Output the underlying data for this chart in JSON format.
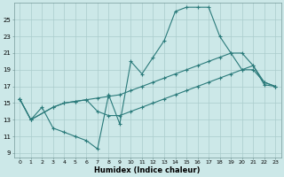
{
  "xlabel": "Humidex (Indice chaleur)",
  "ylabel": "",
  "bg_color": "#cce8e8",
  "grid_color": "#aacccc",
  "line_color": "#2a7a7a",
  "xlim": [
    -0.5,
    23.5
  ],
  "ylim": [
    8.5,
    27
  ],
  "xticks": [
    0,
    1,
    2,
    3,
    4,
    5,
    6,
    7,
    8,
    9,
    10,
    11,
    12,
    13,
    14,
    15,
    16,
    17,
    18,
    19,
    20,
    21,
    22,
    23
  ],
  "yticks": [
    9,
    11,
    13,
    15,
    17,
    19,
    21,
    23,
    25
  ],
  "line1_x": [
    0,
    1,
    2,
    3,
    4,
    5,
    6,
    7,
    8,
    9,
    10,
    11,
    12,
    13,
    14,
    15,
    16,
    17,
    18,
    19,
    20,
    21,
    22,
    23
  ],
  "line1_y": [
    15.5,
    13.0,
    14.5,
    12.0,
    11.5,
    11.0,
    10.5,
    9.5,
    16.0,
    12.5,
    20.0,
    18.5,
    20.5,
    22.5,
    26.0,
    26.5,
    26.5,
    26.5,
    23.0,
    21.0,
    19.0,
    19.0,
    17.5,
    17.0
  ],
  "line2_x": [
    0,
    1,
    3,
    4,
    5,
    6,
    7,
    8,
    9,
    10,
    11,
    12,
    13,
    14,
    15,
    16,
    17,
    18,
    19,
    20,
    21,
    22,
    23
  ],
  "line2_y": [
    15.5,
    13.0,
    14.5,
    15.0,
    15.2,
    15.4,
    15.6,
    15.8,
    16.0,
    16.5,
    17.0,
    17.5,
    18.0,
    18.5,
    19.0,
    19.5,
    20.0,
    20.5,
    21.0,
    21.0,
    19.5,
    17.2,
    17.0
  ],
  "line3_x": [
    0,
    1,
    3,
    4,
    5,
    6,
    7,
    8,
    9,
    10,
    11,
    12,
    13,
    14,
    15,
    16,
    17,
    18,
    19,
    20,
    21,
    22,
    23
  ],
  "line3_y": [
    15.5,
    13.0,
    14.5,
    15.0,
    15.2,
    15.4,
    14.0,
    13.5,
    13.5,
    14.0,
    14.5,
    15.0,
    15.5,
    16.0,
    16.5,
    17.0,
    17.5,
    18.0,
    18.5,
    19.0,
    19.5,
    17.5,
    17.0
  ]
}
